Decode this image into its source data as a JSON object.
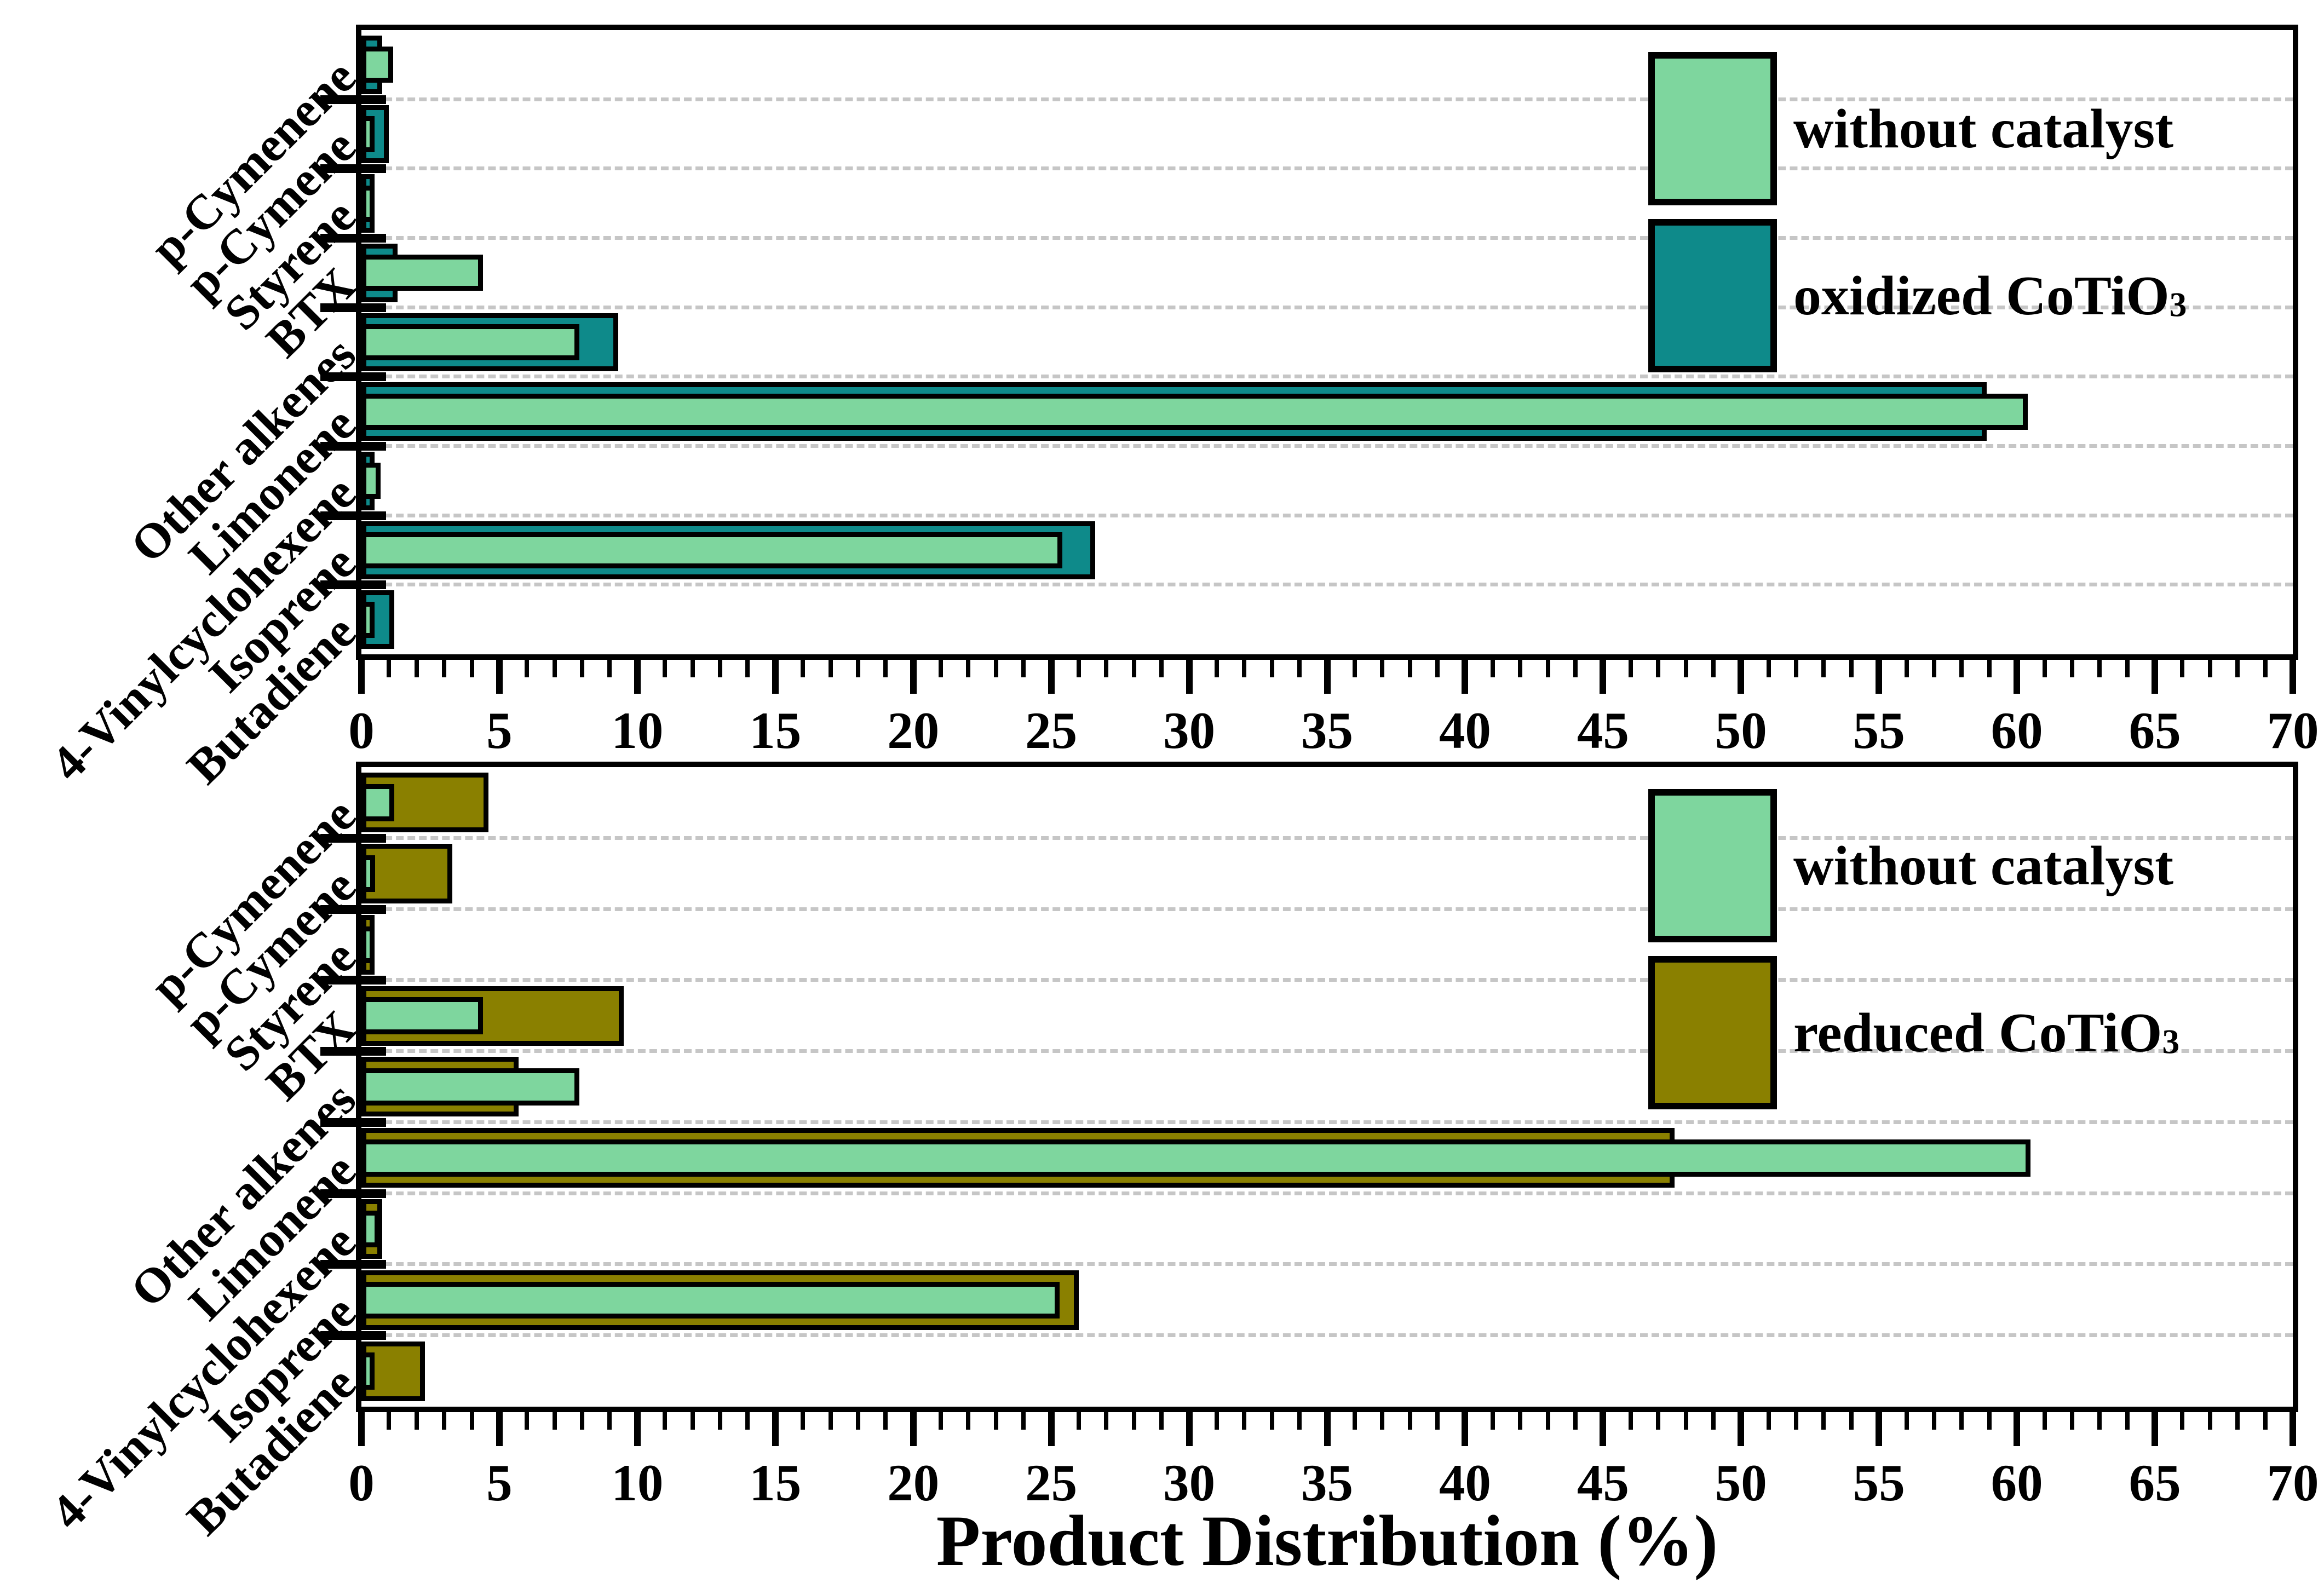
{
  "figure": {
    "xlabel": "Product Distribution (%)",
    "background": "#ffffff"
  },
  "colors": {
    "without_catalyst": "#7ED69E",
    "oxidized_cotio3": "#0E8A8A",
    "reduced_cotio3": "#8A8000",
    "bar_border": "#000000",
    "gridline": "#C6C6C6",
    "axis": "#000000"
  },
  "chart_data": [
    {
      "type": "bar",
      "orientation": "horizontal",
      "panel": "top",
      "title": "",
      "xlabel": "",
      "ylabel": "",
      "xlim": [
        0,
        70
      ],
      "x_major_ticks": [
        0,
        5,
        10,
        15,
        20,
        25,
        30,
        35,
        40,
        45,
        50,
        55,
        60,
        65,
        70
      ],
      "x_minor_step": 1,
      "grid": "dashed horizontal at category boundaries",
      "legend_position": "top-right inside plot",
      "categories": [
        "p-Cymenene",
        "p-Cymene",
        "Styrene",
        "BTX",
        "Other alkenes",
        "Limonene",
        "4-Vinylcyclohexene",
        "Isoprene",
        "Butadiene"
      ],
      "series": [
        {
          "name": "without catalyst",
          "label_main": "without catalyst",
          "label_sub": "",
          "color_key": "without_catalyst",
          "values": [
            1.15,
            0.45,
            0.2,
            4.4,
            7.9,
            60.4,
            0.7,
            25.4,
            0
          ]
        },
        {
          "name": "oxidized CoTiO3",
          "label_main": "oxidized CoTiO",
          "label_sub": "3",
          "color_key": "oxidized_cotio3",
          "values": [
            0.75,
            1.0,
            0,
            1.3,
            9.3,
            58.9,
            0,
            26.6,
            1.2
          ]
        }
      ]
    },
    {
      "type": "bar",
      "orientation": "horizontal",
      "panel": "bottom",
      "title": "",
      "xlabel": "Product Distribution (%)",
      "ylabel": "",
      "xlim": [
        0,
        70
      ],
      "x_major_ticks": [
        0,
        5,
        10,
        15,
        20,
        25,
        30,
        35,
        40,
        45,
        50,
        55,
        60,
        65,
        70
      ],
      "x_minor_step": 1,
      "grid": "dashed horizontal at category boundaries",
      "legend_position": "top-right inside plot",
      "categories": [
        "p-Cymenene",
        "p-Cymene",
        "Styrene",
        "BTX",
        "Other alkenes",
        "Limonene",
        "4-Vinylcyclohexene",
        "Isoprene",
        "Butadiene"
      ],
      "series": [
        {
          "name": "without catalyst",
          "label_main": "without catalyst",
          "label_sub": "",
          "color_key": "without_catalyst",
          "values": [
            1.2,
            0.5,
            0.25,
            4.4,
            7.9,
            60.5,
            0.65,
            25.3,
            0
          ]
        },
        {
          "name": "reduced CoTiO3",
          "label_main": "reduced CoTiO",
          "label_sub": "3",
          "color_key": "reduced_cotio3",
          "values": [
            4.6,
            3.3,
            0.35,
            9.5,
            5.7,
            47.6,
            0.75,
            26.0,
            2.3
          ]
        }
      ]
    }
  ]
}
